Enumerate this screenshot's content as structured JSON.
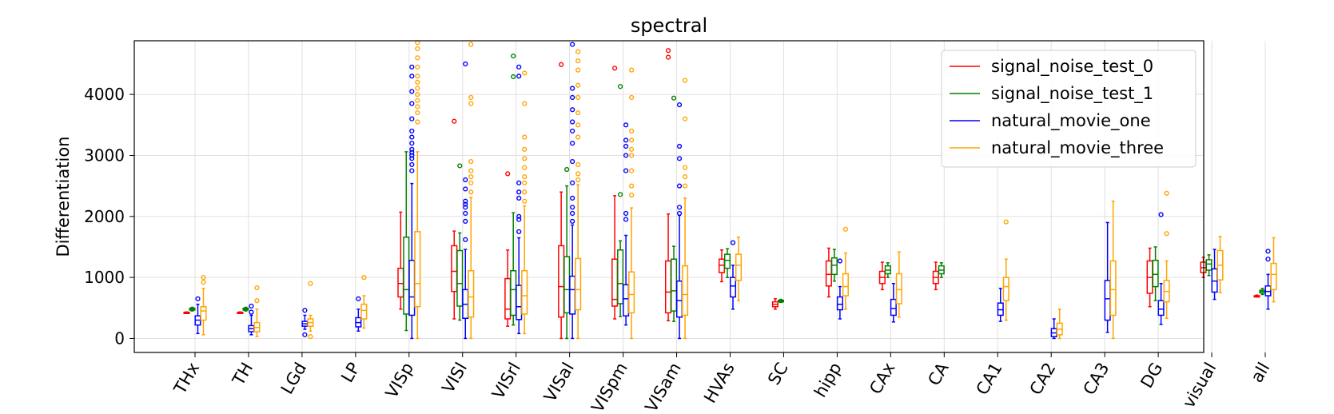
{
  "chart_data": {
    "type": "box",
    "title": "spectral",
    "xlabel": "",
    "ylabel": "Differentiation",
    "ylim": [
      -230,
      4880
    ],
    "yticks": [
      0,
      1000,
      2000,
      3000,
      4000
    ],
    "grid": true,
    "legend_position": "top-right",
    "categories": [
      "THx",
      "TH",
      "LGd",
      "LP",
      "VISp",
      "VISl",
      "VISrl",
      "VISal",
      "VISpm",
      "VISam",
      "HVAs",
      "SC",
      "hipp",
      "CAx",
      "CA",
      "CA1",
      "CA2",
      "CA3",
      "DG",
      "visual",
      "all"
    ],
    "series": [
      {
        "name": "signal_noise_test_0",
        "color": "#ff0000",
        "boxes": [
          {
            "cat": "THx",
            "min": 410,
            "q1": 415,
            "med": 420,
            "q3": 428,
            "max": 435,
            "out": []
          },
          {
            "cat": "TH",
            "min": 410,
            "q1": 415,
            "med": 420,
            "q3": 428,
            "max": 435,
            "out": []
          },
          {
            "cat": "VISp",
            "min": 480,
            "q1": 680,
            "med": 900,
            "q3": 1150,
            "max": 2070,
            "out": []
          },
          {
            "cat": "VISl",
            "min": 320,
            "q1": 770,
            "med": 1100,
            "q3": 1520,
            "max": 1760,
            "out": [
              3560
            ]
          },
          {
            "cat": "VISrl",
            "min": 200,
            "q1": 320,
            "med": 480,
            "q3": 980,
            "max": 1450,
            "out": [
              2700
            ]
          },
          {
            "cat": "VISal",
            "min": 0,
            "q1": 350,
            "med": 850,
            "q3": 1520,
            "max": 2400,
            "out": [
              4490
            ]
          },
          {
            "cat": "VISpm",
            "min": 320,
            "q1": 530,
            "med": 640,
            "q3": 1300,
            "max": 2340,
            "out": [
              4430
            ]
          },
          {
            "cat": "VISam",
            "min": 290,
            "q1": 420,
            "med": 760,
            "q3": 1270,
            "max": 2040,
            "out": [
              4720,
              4610
            ]
          },
          {
            "cat": "HVAs",
            "min": 930,
            "q1": 1080,
            "med": 1200,
            "q3": 1300,
            "max": 1450,
            "out": []
          },
          {
            "cat": "SC",
            "min": 480,
            "q1": 520,
            "med": 560,
            "q3": 600,
            "max": 650,
            "out": []
          },
          {
            "cat": "hipp",
            "min": 680,
            "q1": 860,
            "med": 1050,
            "q3": 1270,
            "max": 1480,
            "out": []
          },
          {
            "cat": "CAx",
            "min": 800,
            "q1": 900,
            "med": 1000,
            "q3": 1100,
            "max": 1250,
            "out": []
          },
          {
            "cat": "CA",
            "min": 800,
            "q1": 900,
            "med": 1000,
            "q3": 1100,
            "max": 1250,
            "out": []
          },
          {
            "cat": "DG",
            "min": 520,
            "q1": 740,
            "med": 1000,
            "q3": 1270,
            "max": 1480,
            "out": []
          },
          {
            "cat": "visual",
            "min": 1000,
            "q1": 1080,
            "med": 1160,
            "q3": 1250,
            "max": 1330,
            "out": []
          },
          {
            "cat": "all",
            "min": 680,
            "q1": 685,
            "med": 690,
            "q3": 700,
            "max": 710,
            "out": []
          }
        ]
      },
      {
        "name": "signal_noise_test_1",
        "color": "#008000",
        "boxes": [
          {
            "cat": "THx",
            "min": 450,
            "q1": 465,
            "med": 480,
            "q3": 495,
            "max": 510,
            "out": []
          },
          {
            "cat": "TH",
            "min": 450,
            "q1": 465,
            "med": 480,
            "q3": 495,
            "max": 510,
            "out": []
          },
          {
            "cat": "VISp",
            "min": 130,
            "q1": 400,
            "med": 800,
            "q3": 1660,
            "max": 3060,
            "out": []
          },
          {
            "cat": "VISl",
            "min": 300,
            "q1": 530,
            "med": 900,
            "q3": 1440,
            "max": 1730,
            "out": [
              2830
            ]
          },
          {
            "cat": "VISrl",
            "min": 220,
            "q1": 380,
            "med": 800,
            "q3": 1110,
            "max": 2060,
            "out": [
              4630,
              4290
            ]
          },
          {
            "cat": "VISal",
            "min": 0,
            "q1": 420,
            "med": 800,
            "q3": 1340,
            "max": 2500,
            "out": [
              2770
            ]
          },
          {
            "cat": "VISpm",
            "min": 360,
            "q1": 570,
            "med": 900,
            "q3": 1450,
            "max": 1600,
            "out": [
              4130,
              2360
            ]
          },
          {
            "cat": "VISam",
            "min": 280,
            "q1": 450,
            "med": 780,
            "q3": 1300,
            "max": 1510,
            "out": [
              3940
            ]
          },
          {
            "cat": "HVAs",
            "min": 1000,
            "q1": 1150,
            "med": 1280,
            "q3": 1380,
            "max": 1470,
            "out": []
          },
          {
            "cat": "SC",
            "min": 590,
            "q1": 600,
            "med": 610,
            "q3": 625,
            "max": 640,
            "out": []
          },
          {
            "cat": "hipp",
            "min": 940,
            "q1": 1050,
            "med": 1200,
            "q3": 1320,
            "max": 1460,
            "out": []
          },
          {
            "cat": "CAx",
            "min": 1000,
            "q1": 1060,
            "med": 1120,
            "q3": 1190,
            "max": 1240,
            "out": []
          },
          {
            "cat": "CA",
            "min": 1000,
            "q1": 1060,
            "med": 1120,
            "q3": 1190,
            "max": 1240,
            "out": []
          },
          {
            "cat": "DG",
            "min": 620,
            "q1": 850,
            "med": 1050,
            "q3": 1280,
            "max": 1500,
            "out": []
          },
          {
            "cat": "visual",
            "min": 1030,
            "q1": 1120,
            "med": 1220,
            "q3": 1290,
            "max": 1370,
            "out": []
          },
          {
            "cat": "all",
            "min": 720,
            "q1": 745,
            "med": 770,
            "q3": 790,
            "max": 820,
            "out": []
          }
        ]
      },
      {
        "name": "natural_movie_one",
        "color": "#0000ff",
        "boxes": [
          {
            "cat": "THx",
            "min": 80,
            "q1": 220,
            "med": 300,
            "q3": 370,
            "max": 560,
            "out": [
              650
            ]
          },
          {
            "cat": "TH",
            "min": 60,
            "q1": 110,
            "med": 160,
            "q3": 210,
            "max": 380,
            "out": [
              430,
              530
            ]
          },
          {
            "cat": "LGd",
            "min": 150,
            "q1": 200,
            "med": 240,
            "q3": 280,
            "max": 380,
            "out": [
              60,
              460
            ]
          },
          {
            "cat": "LP",
            "min": 120,
            "q1": 190,
            "med": 260,
            "q3": 340,
            "max": 480,
            "out": [
              650
            ]
          },
          {
            "cat": "VISp",
            "min": 0,
            "q1": 380,
            "med": 680,
            "q3": 1280,
            "max": 2540,
            "out": [
              2750,
              2850,
              2950,
              3000,
              3050,
              3100,
              3200,
              3300,
              3400,
              3600,
              3850,
              4050,
              4300,
              4450
            ]
          },
          {
            "cat": "VISl",
            "min": 0,
            "q1": 330,
            "med": 560,
            "q3": 800,
            "max": 1460,
            "out": [
              1620,
              1920,
              2050,
              2150,
              2200,
              2250,
              2450,
              2600,
              4500
            ]
          },
          {
            "cat": "VISrl",
            "min": 80,
            "q1": 310,
            "med": 520,
            "q3": 870,
            "max": 1650,
            "out": [
              1750,
              1950,
              2000,
              2300,
              2400,
              2550,
              4300,
              4450
            ]
          },
          {
            "cat": "VISal",
            "min": 0,
            "q1": 400,
            "med": 800,
            "q3": 1020,
            "max": 1860,
            "out": [
              1920,
              2050,
              2150,
              2300,
              2550,
              2900,
              3200,
              3400,
              3550,
              3750,
              3950,
              4100,
              4820
            ]
          },
          {
            "cat": "VISpm",
            "min": 220,
            "q1": 370,
            "med": 650,
            "q3": 880,
            "max": 1690,
            "out": [
              1950,
              2050,
              2750,
              3000,
              3150,
              3250,
              3500
            ]
          },
          {
            "cat": "VISam",
            "min": 0,
            "q1": 350,
            "med": 620,
            "q3": 940,
            "max": 2020,
            "out": [
              2050,
              2150,
              2500,
              2950,
              3150,
              3830
            ]
          },
          {
            "cat": "HVAs",
            "min": 480,
            "q1": 680,
            "med": 860,
            "q3": 1000,
            "max": 1200,
            "out": [
              1570
            ]
          },
          {
            "cat": "hipp",
            "min": 320,
            "q1": 470,
            "med": 560,
            "q3": 680,
            "max": 850,
            "out": [
              1270
            ]
          },
          {
            "cat": "CAx",
            "min": 270,
            "q1": 380,
            "med": 490,
            "q3": 640,
            "max": 900,
            "out": []
          },
          {
            "cat": "CA1",
            "min": 280,
            "q1": 380,
            "med": 470,
            "q3": 580,
            "max": 820,
            "out": []
          },
          {
            "cat": "CA2",
            "min": 0,
            "q1": 30,
            "med": 90,
            "q3": 160,
            "max": 320,
            "out": []
          },
          {
            "cat": "CA3",
            "min": 100,
            "q1": 300,
            "med": 650,
            "q3": 950,
            "max": 1900,
            "out": []
          },
          {
            "cat": "DG",
            "min": 230,
            "q1": 380,
            "med": 480,
            "q3": 620,
            "max": 900,
            "out": [
              2030
            ]
          },
          {
            "cat": "visual",
            "min": 640,
            "q1": 760,
            "med": 940,
            "q3": 1140,
            "max": 1460,
            "out": []
          },
          {
            "cat": "all",
            "min": 480,
            "q1": 700,
            "med": 770,
            "q3": 860,
            "max": 1050,
            "out": [
              1300,
              1430
            ]
          }
        ]
      },
      {
        "name": "natural_movie_three",
        "color": "#ffa500",
        "boxes": [
          {
            "cat": "THx",
            "min": 60,
            "q1": 300,
            "med": 450,
            "q3": 520,
            "max": 820,
            "out": [
              920,
              1000
            ]
          },
          {
            "cat": "TH",
            "min": 30,
            "q1": 110,
            "med": 180,
            "q3": 260,
            "max": 480,
            "out": [
              620,
              830
            ]
          },
          {
            "cat": "LGd",
            "min": 120,
            "q1": 200,
            "med": 260,
            "q3": 320,
            "max": 380,
            "out": [
              30,
              900
            ]
          },
          {
            "cat": "LP",
            "min": 170,
            "q1": 320,
            "med": 460,
            "q3": 560,
            "max": 700,
            "out": [
              1000
            ]
          },
          {
            "cat": "VISp",
            "min": 0,
            "q1": 520,
            "med": 900,
            "q3": 1750,
            "max": 3060,
            "out": [
              3550,
              3700,
              3800,
              3900,
              4000,
              4100,
              4200,
              4300,
              4450,
              4600,
              4750,
              4850
            ]
          },
          {
            "cat": "VISl",
            "min": 0,
            "q1": 350,
            "med": 680,
            "q3": 1110,
            "max": 2310,
            "out": [
              2400,
              2550,
              2650,
              2750,
              2900,
              3850,
              3950,
              4820
            ]
          },
          {
            "cat": "VISrl",
            "min": 80,
            "q1": 400,
            "med": 700,
            "q3": 1110,
            "max": 2170,
            "out": [
              2250,
              2400,
              2550,
              2650,
              2800,
              2950,
              3100,
              3300,
              3850,
              4350
            ]
          },
          {
            "cat": "VISal",
            "min": 0,
            "q1": 470,
            "med": 800,
            "q3": 1310,
            "max": 2520,
            "out": [
              2600,
              2700,
              2850,
              3300,
              3500,
              3700,
              3950,
              4150,
              4400,
              4550,
              4700
            ]
          },
          {
            "cat": "VISpm",
            "min": 0,
            "q1": 420,
            "med": 720,
            "q3": 1090,
            "max": 2140,
            "out": [
              2350,
              2500,
              2750,
              3000,
              3100,
              3250,
              3400,
              3950,
              4400
            ]
          },
          {
            "cat": "VISam",
            "min": 0,
            "q1": 380,
            "med": 720,
            "q3": 1190,
            "max": 2300,
            "out": [
              2500,
              2650,
              2800,
              3600,
              4230
            ]
          },
          {
            "cat": "HVAs",
            "min": 620,
            "q1": 950,
            "med": 1200,
            "q3": 1380,
            "max": 1660,
            "out": []
          },
          {
            "cat": "hipp",
            "min": 480,
            "q1": 700,
            "med": 850,
            "q3": 1060,
            "max": 1400,
            "out": [
              1790
            ]
          },
          {
            "cat": "CAx",
            "min": 350,
            "q1": 570,
            "med": 800,
            "q3": 1060,
            "max": 1420,
            "out": []
          },
          {
            "cat": "CA1",
            "min": 300,
            "q1": 620,
            "med": 850,
            "q3": 1000,
            "max": 1300,
            "out": [
              1910
            ]
          },
          {
            "cat": "CA2",
            "min": 0,
            "q1": 60,
            "med": 150,
            "q3": 250,
            "max": 480,
            "out": []
          },
          {
            "cat": "CA3",
            "min": 0,
            "q1": 380,
            "med": 800,
            "q3": 1270,
            "max": 2250,
            "out": []
          },
          {
            "cat": "DG",
            "min": 330,
            "q1": 600,
            "med": 770,
            "q3": 950,
            "max": 1270,
            "out": [
              1720,
              2380
            ]
          },
          {
            "cat": "visual",
            "min": 750,
            "q1": 960,
            "med": 1200,
            "q3": 1440,
            "max": 1670,
            "out": []
          },
          {
            "cat": "all",
            "min": 600,
            "q1": 800,
            "med": 1050,
            "q3": 1230,
            "max": 1650,
            "out": []
          }
        ]
      }
    ]
  }
}
